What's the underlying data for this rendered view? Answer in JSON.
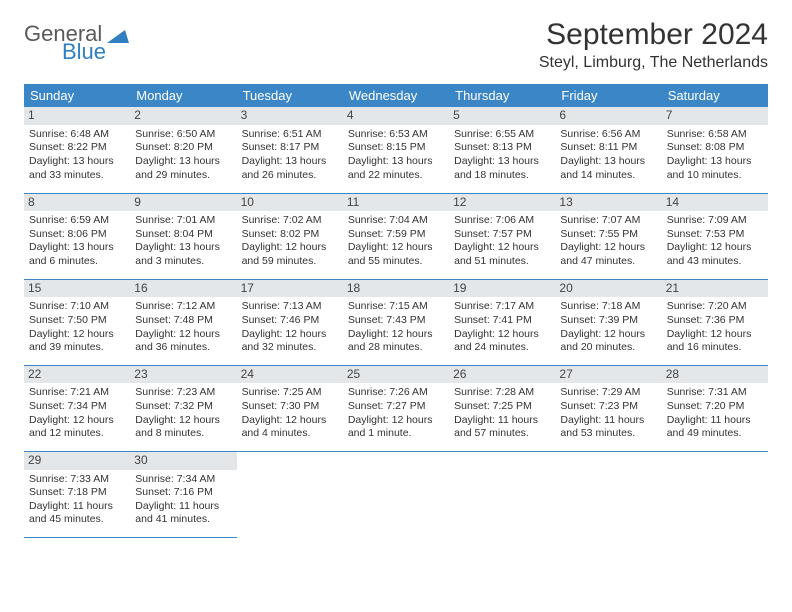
{
  "logo": {
    "line1": "General",
    "line2": "Blue"
  },
  "title": "September 2024",
  "location": "Steyl, Limburg, The Netherlands",
  "colors": {
    "header_bg": "#3b86c6",
    "header_text": "#ffffff",
    "daynum_bg": "#e4e7ea",
    "border": "#3b86c6",
    "logo_gray": "#5a5a5a",
    "logo_blue": "#2f7fc2"
  },
  "weekdays": [
    "Sunday",
    "Monday",
    "Tuesday",
    "Wednesday",
    "Thursday",
    "Friday",
    "Saturday"
  ],
  "days": [
    {
      "n": "1",
      "sr": "6:48 AM",
      "ss": "8:22 PM",
      "dl": "13 hours and 33 minutes."
    },
    {
      "n": "2",
      "sr": "6:50 AM",
      "ss": "8:20 PM",
      "dl": "13 hours and 29 minutes."
    },
    {
      "n": "3",
      "sr": "6:51 AM",
      "ss": "8:17 PM",
      "dl": "13 hours and 26 minutes."
    },
    {
      "n": "4",
      "sr": "6:53 AM",
      "ss": "8:15 PM",
      "dl": "13 hours and 22 minutes."
    },
    {
      "n": "5",
      "sr": "6:55 AM",
      "ss": "8:13 PM",
      "dl": "13 hours and 18 minutes."
    },
    {
      "n": "6",
      "sr": "6:56 AM",
      "ss": "8:11 PM",
      "dl": "13 hours and 14 minutes."
    },
    {
      "n": "7",
      "sr": "6:58 AM",
      "ss": "8:08 PM",
      "dl": "13 hours and 10 minutes."
    },
    {
      "n": "8",
      "sr": "6:59 AM",
      "ss": "8:06 PM",
      "dl": "13 hours and 6 minutes."
    },
    {
      "n": "9",
      "sr": "7:01 AM",
      "ss": "8:04 PM",
      "dl": "13 hours and 3 minutes."
    },
    {
      "n": "10",
      "sr": "7:02 AM",
      "ss": "8:02 PM",
      "dl": "12 hours and 59 minutes."
    },
    {
      "n": "11",
      "sr": "7:04 AM",
      "ss": "7:59 PM",
      "dl": "12 hours and 55 minutes."
    },
    {
      "n": "12",
      "sr": "7:06 AM",
      "ss": "7:57 PM",
      "dl": "12 hours and 51 minutes."
    },
    {
      "n": "13",
      "sr": "7:07 AM",
      "ss": "7:55 PM",
      "dl": "12 hours and 47 minutes."
    },
    {
      "n": "14",
      "sr": "7:09 AM",
      "ss": "7:53 PM",
      "dl": "12 hours and 43 minutes."
    },
    {
      "n": "15",
      "sr": "7:10 AM",
      "ss": "7:50 PM",
      "dl": "12 hours and 39 minutes."
    },
    {
      "n": "16",
      "sr": "7:12 AM",
      "ss": "7:48 PM",
      "dl": "12 hours and 36 minutes."
    },
    {
      "n": "17",
      "sr": "7:13 AM",
      "ss": "7:46 PM",
      "dl": "12 hours and 32 minutes."
    },
    {
      "n": "18",
      "sr": "7:15 AM",
      "ss": "7:43 PM",
      "dl": "12 hours and 28 minutes."
    },
    {
      "n": "19",
      "sr": "7:17 AM",
      "ss": "7:41 PM",
      "dl": "12 hours and 24 minutes."
    },
    {
      "n": "20",
      "sr": "7:18 AM",
      "ss": "7:39 PM",
      "dl": "12 hours and 20 minutes."
    },
    {
      "n": "21",
      "sr": "7:20 AM",
      "ss": "7:36 PM",
      "dl": "12 hours and 16 minutes."
    },
    {
      "n": "22",
      "sr": "7:21 AM",
      "ss": "7:34 PM",
      "dl": "12 hours and 12 minutes."
    },
    {
      "n": "23",
      "sr": "7:23 AM",
      "ss": "7:32 PM",
      "dl": "12 hours and 8 minutes."
    },
    {
      "n": "24",
      "sr": "7:25 AM",
      "ss": "7:30 PM",
      "dl": "12 hours and 4 minutes."
    },
    {
      "n": "25",
      "sr": "7:26 AM",
      "ss": "7:27 PM",
      "dl": "12 hours and 1 minute."
    },
    {
      "n": "26",
      "sr": "7:28 AM",
      "ss": "7:25 PM",
      "dl": "11 hours and 57 minutes."
    },
    {
      "n": "27",
      "sr": "7:29 AM",
      "ss": "7:23 PM",
      "dl": "11 hours and 53 minutes."
    },
    {
      "n": "28",
      "sr": "7:31 AM",
      "ss": "7:20 PM",
      "dl": "11 hours and 49 minutes."
    },
    {
      "n": "29",
      "sr": "7:33 AM",
      "ss": "7:18 PM",
      "dl": "11 hours and 45 minutes."
    },
    {
      "n": "30",
      "sr": "7:34 AM",
      "ss": "7:16 PM",
      "dl": "11 hours and 41 minutes."
    }
  ],
  "labels": {
    "sunrise": "Sunrise:",
    "sunset": "Sunset:",
    "daylight": "Daylight:"
  }
}
